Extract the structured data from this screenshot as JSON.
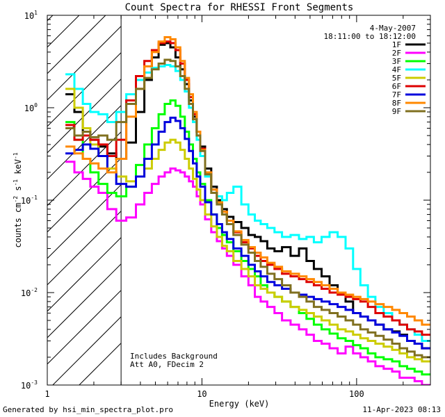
{
  "chart_data": {
    "type": "line",
    "title": "Count Spectra for RHESSI Front Segments",
    "date": "4-May-2007",
    "time_range": "18:11:00 to 18:12:00",
    "xlabel": "Energy (keV)",
    "ylabel_prefix": "counts cm",
    "ylabel_sup1": "-2",
    "ylabel_mid1": " s",
    "ylabel_sup2": "-1",
    "ylabel_mid2": " keV",
    "ylabel_sup3": "-1",
    "xscale": "log",
    "yscale": "log",
    "xlim": [
      1,
      300
    ],
    "ylim": [
      0.001,
      10
    ],
    "x_ticks": [
      {
        "value": 1,
        "label": "1"
      },
      {
        "value": 10,
        "label": "10"
      },
      {
        "value": 100,
        "label": "100"
      }
    ],
    "y_ticks": [
      {
        "value": 0.001,
        "base": "10",
        "exp": "-3"
      },
      {
        "value": 0.01,
        "base": "10",
        "exp": "-2"
      },
      {
        "value": 0.1,
        "base": "10",
        "exp": "-1"
      },
      {
        "value": 1,
        "base": "10",
        "exp": "0"
      },
      {
        "value": 10,
        "base": "10",
        "exp": "1"
      }
    ],
    "hatched_region": [
      1,
      3
    ],
    "annotation_line1": "Includes Background",
    "annotation_line2": "Att A0, FDecim 2",
    "legend_position": "top-right",
    "x": [
      1.4,
      1.6,
      1.8,
      2.0,
      2.3,
      2.6,
      3.0,
      3.5,
      4.0,
      4.5,
      5.0,
      5.5,
      6.0,
      6.5,
      7.0,
      7.5,
      8.0,
      8.5,
      9.0,
      9.5,
      10,
      11,
      12,
      13,
      14,
      15,
      17,
      19,
      21,
      23,
      25,
      28,
      31,
      35,
      40,
      45,
      50,
      56,
      63,
      71,
      80,
      90,
      100,
      112,
      125,
      140,
      160,
      180,
      200,
      225,
      250,
      280
    ],
    "series": [
      {
        "name": "1F",
        "color": "#000000",
        "values": [
          1.4,
          0.9,
          0.55,
          0.45,
          0.38,
          0.32,
          0.28,
          0.42,
          0.9,
          2.0,
          3.5,
          4.8,
          5.0,
          4.5,
          3.5,
          2.6,
          1.8,
          1.2,
          0.8,
          0.55,
          0.38,
          0.22,
          0.14,
          0.1,
          0.08,
          0.066,
          0.058,
          0.05,
          0.042,
          0.04,
          0.036,
          0.03,
          0.028,
          0.031,
          0.025,
          0.03,
          0.022,
          0.018,
          0.015,
          0.012,
          0.01,
          0.008,
          0.006,
          0.0055,
          0.005,
          0.0045,
          0.004,
          0.0038,
          0.0035,
          0.003,
          0.0028,
          0.0025
        ]
      },
      {
        "name": "2F",
        "color": "#ff00ff",
        "values": [
          0.26,
          0.2,
          0.17,
          0.14,
          0.12,
          0.08,
          0.06,
          0.065,
          0.09,
          0.12,
          0.15,
          0.18,
          0.2,
          0.22,
          0.21,
          0.2,
          0.18,
          0.16,
          0.14,
          0.11,
          0.09,
          0.062,
          0.045,
          0.036,
          0.03,
          0.025,
          0.02,
          0.015,
          0.012,
          0.009,
          0.008,
          0.007,
          0.006,
          0.005,
          0.0045,
          0.004,
          0.0035,
          0.003,
          0.0028,
          0.0025,
          0.0022,
          0.0026,
          0.0022,
          0.002,
          0.0018,
          0.0016,
          0.0015,
          0.0014,
          0.0012,
          0.0012,
          0.0011,
          0.001
        ]
      },
      {
        "name": "3F",
        "color": "#00ff00",
        "values": [
          0.7,
          0.45,
          0.28,
          0.2,
          0.15,
          0.12,
          0.11,
          0.14,
          0.24,
          0.4,
          0.6,
          0.85,
          1.1,
          1.2,
          1.05,
          0.8,
          0.55,
          0.4,
          0.28,
          0.2,
          0.15,
          0.1,
          0.07,
          0.05,
          0.042,
          0.035,
          0.028,
          0.022,
          0.018,
          0.015,
          0.012,
          0.01,
          0.009,
          0.008,
          0.007,
          0.006,
          0.0052,
          0.0045,
          0.004,
          0.0036,
          0.0032,
          0.003,
          0.0027,
          0.0025,
          0.0022,
          0.002,
          0.0019,
          0.0018,
          0.0016,
          0.0015,
          0.0014,
          0.0013
        ]
      },
      {
        "name": "4F",
        "color": "#00ffff",
        "values": [
          2.3,
          1.6,
          1.1,
          0.9,
          0.85,
          0.7,
          0.9,
          1.4,
          2.0,
          2.4,
          2.7,
          2.8,
          2.9,
          2.8,
          2.5,
          2.0,
          1.5,
          1.0,
          0.7,
          0.45,
          0.3,
          0.18,
          0.13,
          0.11,
          0.1,
          0.12,
          0.14,
          0.09,
          0.07,
          0.06,
          0.055,
          0.05,
          0.045,
          0.04,
          0.042,
          0.038,
          0.04,
          0.035,
          0.04,
          0.045,
          0.04,
          0.03,
          0.018,
          0.012,
          0.009,
          0.007,
          0.006,
          0.005,
          0.0045,
          0.004,
          0.0035,
          0.003
        ]
      },
      {
        "name": "5F",
        "color": "#cccc00",
        "values": [
          1.6,
          1.0,
          0.6,
          0.4,
          0.3,
          0.22,
          0.18,
          0.16,
          0.18,
          0.22,
          0.28,
          0.35,
          0.42,
          0.45,
          0.42,
          0.35,
          0.28,
          0.22,
          0.17,
          0.13,
          0.1,
          0.07,
          0.052,
          0.04,
          0.032,
          0.028,
          0.022,
          0.018,
          0.015,
          0.012,
          0.011,
          0.01,
          0.009,
          0.008,
          0.007,
          0.0065,
          0.006,
          0.0055,
          0.005,
          0.0045,
          0.004,
          0.0038,
          0.0035,
          0.0032,
          0.003,
          0.0028,
          0.0026,
          0.0024,
          0.0022,
          0.002,
          0.0019,
          0.0018
        ]
      },
      {
        "name": "6F",
        "color": "#dd0000",
        "values": [
          0.65,
          0.45,
          0.5,
          0.45,
          0.4,
          0.3,
          0.45,
          1.2,
          2.2,
          3.2,
          4.2,
          5.0,
          5.2,
          5.0,
          4.2,
          3.0,
          2.0,
          1.3,
          0.85,
          0.55,
          0.36,
          0.2,
          0.13,
          0.095,
          0.075,
          0.06,
          0.045,
          0.035,
          0.03,
          0.025,
          0.022,
          0.02,
          0.018,
          0.016,
          0.015,
          0.014,
          0.013,
          0.012,
          0.011,
          0.01,
          0.0095,
          0.009,
          0.0085,
          0.008,
          0.007,
          0.006,
          0.0055,
          0.005,
          0.0045,
          0.004,
          0.0038,
          0.0035
        ]
      },
      {
        "name": "7F",
        "color": "#0000dd",
        "values": [
          0.32,
          0.35,
          0.4,
          0.36,
          0.3,
          0.2,
          0.15,
          0.14,
          0.18,
          0.28,
          0.4,
          0.55,
          0.7,
          0.78,
          0.72,
          0.6,
          0.46,
          0.34,
          0.25,
          0.18,
          0.14,
          0.095,
          0.07,
          0.055,
          0.045,
          0.038,
          0.03,
          0.025,
          0.02,
          0.017,
          0.015,
          0.013,
          0.012,
          0.011,
          0.01,
          0.0095,
          0.009,
          0.0085,
          0.008,
          0.0075,
          0.007,
          0.0065,
          0.006,
          0.0055,
          0.005,
          0.0045,
          0.004,
          0.0037,
          0.0034,
          0.003,
          0.0028,
          0.0025
        ]
      },
      {
        "name": "8F",
        "color": "#ff8800",
        "values": [
          0.38,
          0.32,
          0.28,
          0.25,
          0.22,
          0.2,
          0.28,
          0.8,
          1.6,
          2.8,
          4.0,
          5.2,
          5.8,
          5.5,
          4.5,
          3.2,
          2.1,
          1.4,
          0.9,
          0.55,
          0.35,
          0.2,
          0.13,
          0.095,
          0.075,
          0.06,
          0.046,
          0.037,
          0.031,
          0.027,
          0.024,
          0.021,
          0.019,
          0.017,
          0.016,
          0.015,
          0.014,
          0.013,
          0.012,
          0.011,
          0.01,
          0.0095,
          0.009,
          0.0085,
          0.008,
          0.0075,
          0.007,
          0.0065,
          0.006,
          0.0055,
          0.005,
          0.0045
        ]
      },
      {
        "name": "9F",
        "color": "#807020",
        "values": [
          0.6,
          0.5,
          0.55,
          0.48,
          0.5,
          0.45,
          0.7,
          1.1,
          1.6,
          2.1,
          2.6,
          3.0,
          3.3,
          3.2,
          2.8,
          2.2,
          1.6,
          1.1,
          0.75,
          0.5,
          0.34,
          0.19,
          0.12,
          0.09,
          0.07,
          0.055,
          0.042,
          0.033,
          0.027,
          0.022,
          0.019,
          0.016,
          0.014,
          0.012,
          0.01,
          0.009,
          0.008,
          0.007,
          0.0065,
          0.006,
          0.0055,
          0.005,
          0.0045,
          0.004,
          0.0037,
          0.0034,
          0.0031,
          0.0028,
          0.0025,
          0.0023,
          0.0021,
          0.002
        ]
      }
    ]
  },
  "footer": {
    "generated_by": "Generated by hsi_min_spectra_plot.pro",
    "timestamp": "11-Apr-2023 08:13"
  }
}
